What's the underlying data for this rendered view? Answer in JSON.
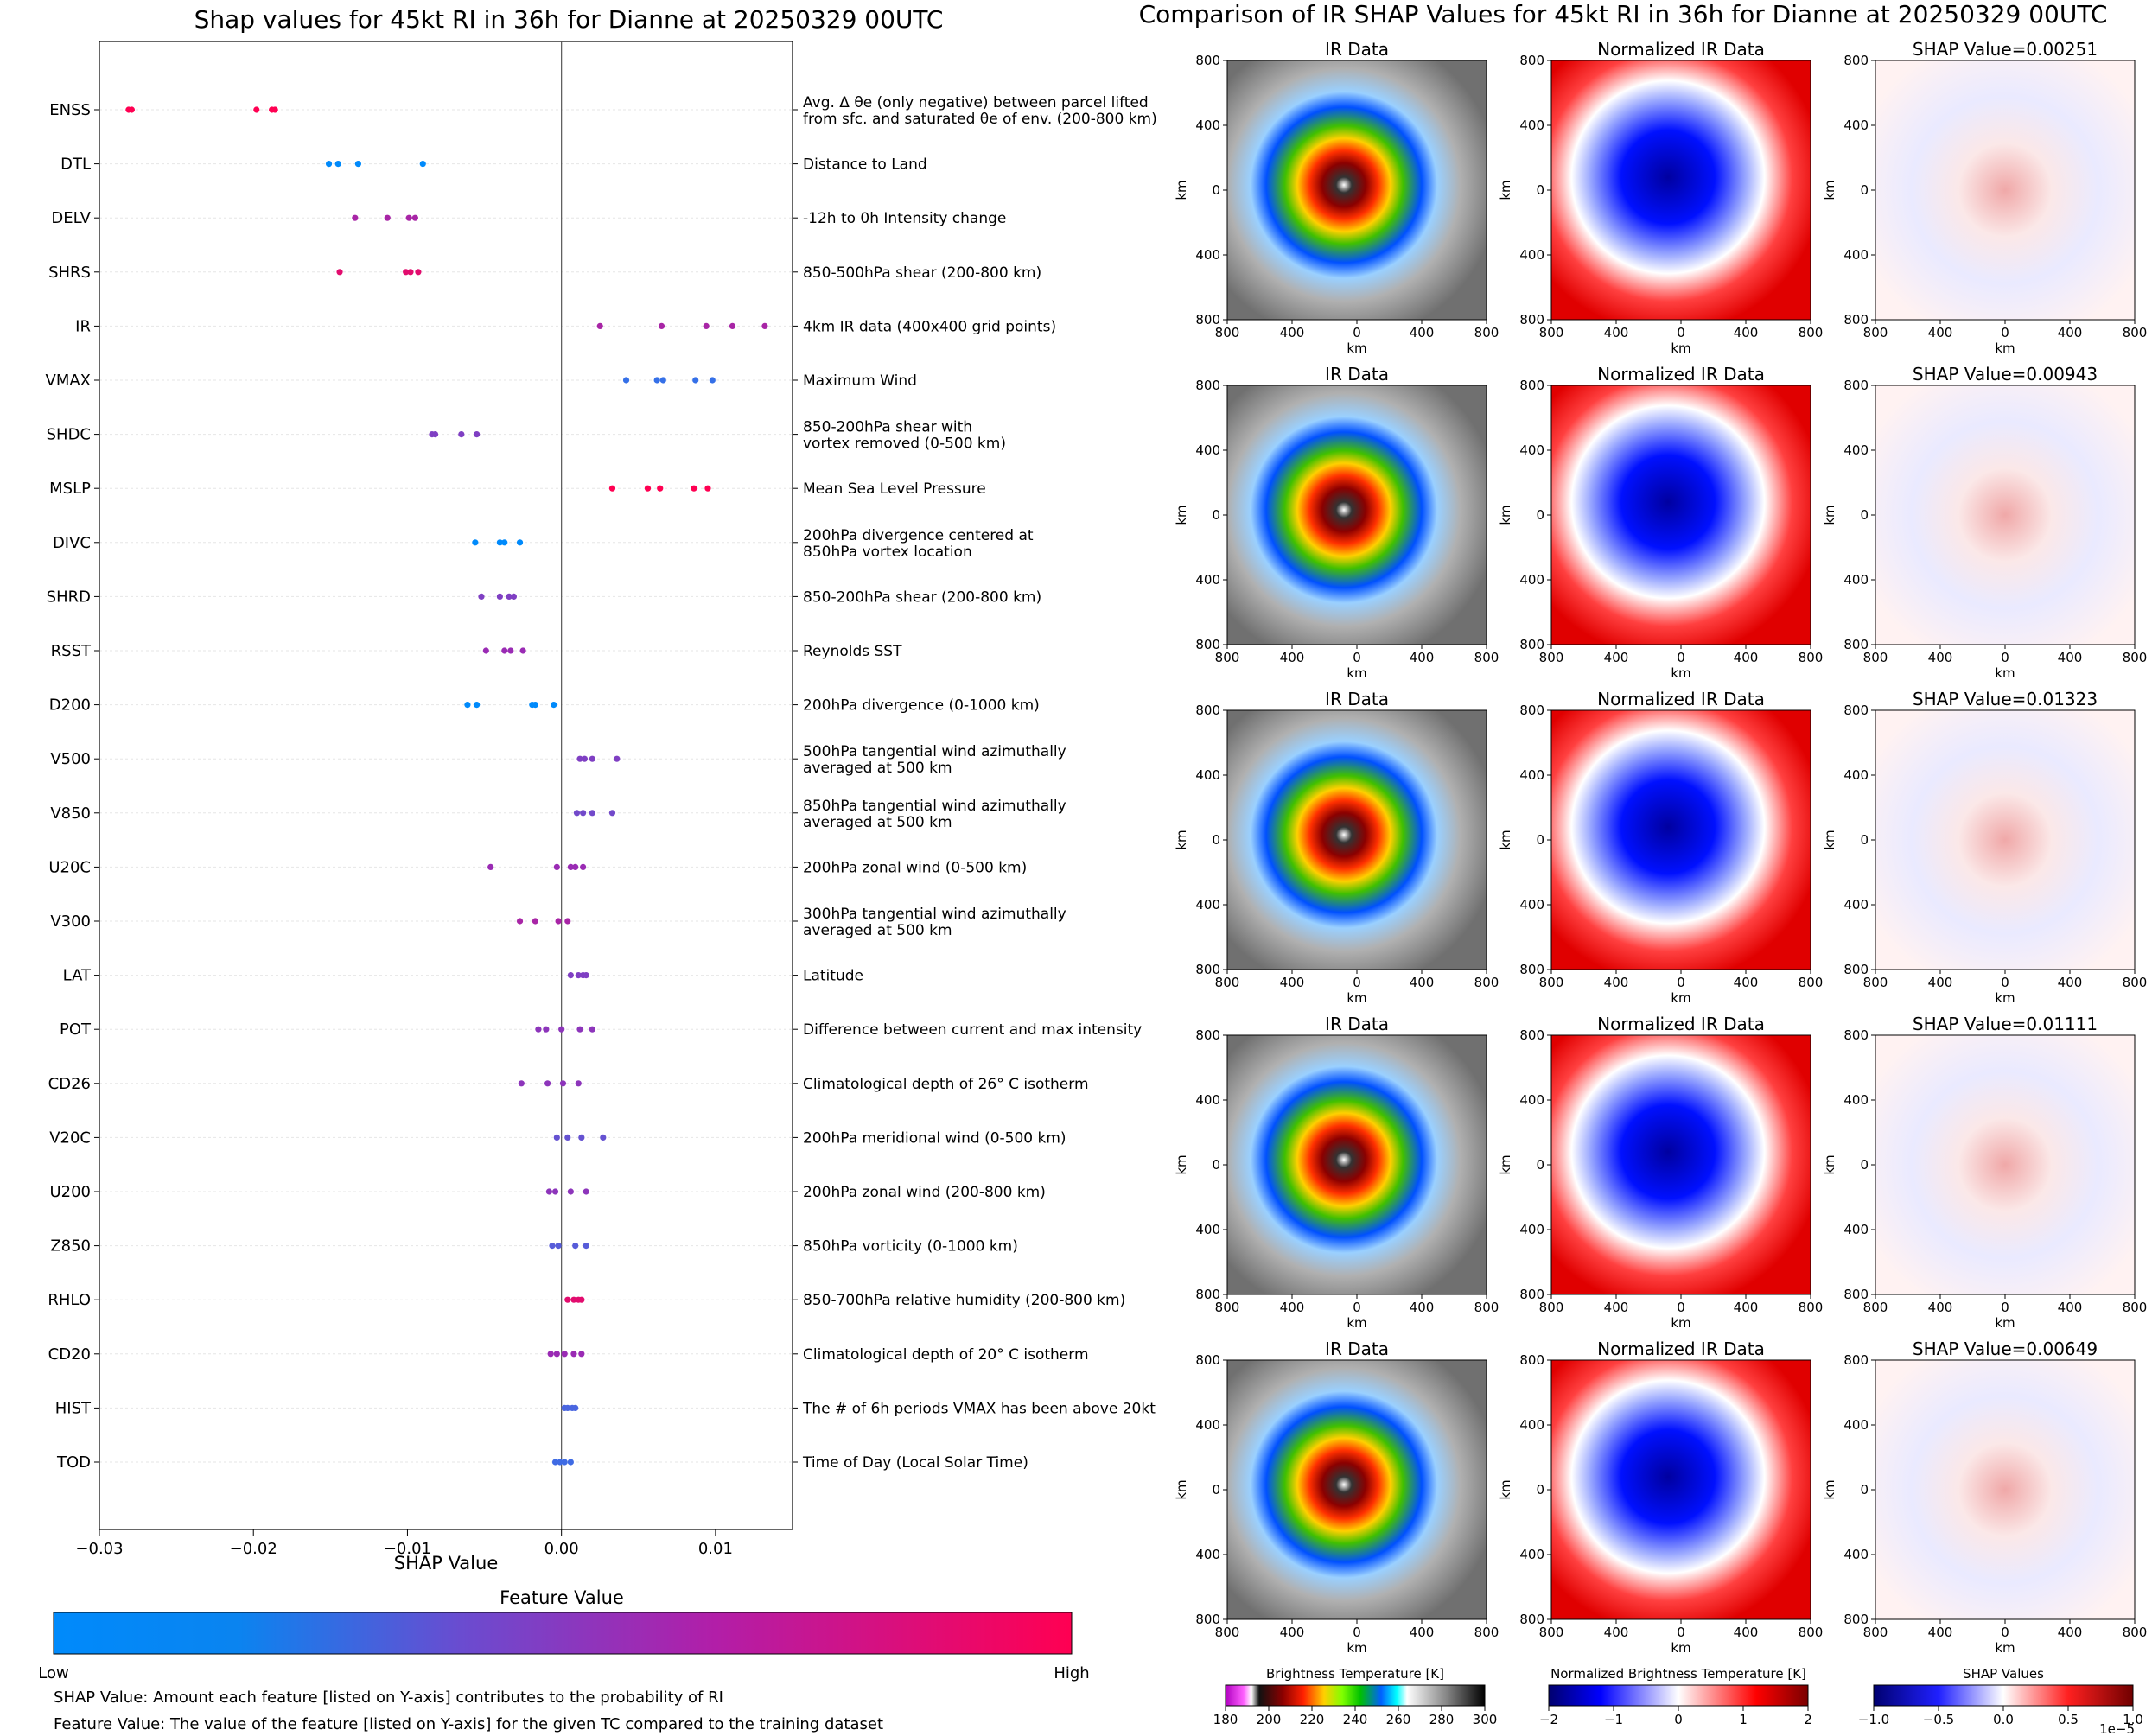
{
  "colors": {
    "low": "#008afb",
    "mid1": "#4a66e0",
    "mid2": "#9a2bb4",
    "high": "#ff0052",
    "grid": "#e6e6e6"
  },
  "chart_data": {
    "type": "scatter",
    "title": "Shap values for 45kt RI in 36h for Dianne at 20250329 00UTC",
    "xlabel": "SHAP Value",
    "xlim": [
      -0.03,
      0.015
    ],
    "xticks": [
      -0.03,
      -0.02,
      -0.01,
      0.0,
      0.01
    ],
    "xtick_labels": [
      "−0.03",
      "−0.02",
      "−0.01",
      "0.00",
      "0.01"
    ],
    "features": [
      {
        "name": "ENSS",
        "desc": [
          "Avg. Δ θe (only negative) between parcel lifted",
          "from sfc. and saturated θe of env. (200-800 km)"
        ],
        "points": [
          -0.0281,
          -0.0279,
          -0.0198,
          -0.0188,
          -0.0186
        ],
        "fv": [
          1,
          1,
          1,
          1,
          1
        ]
      },
      {
        "name": "DTL",
        "desc": [
          "Distance to Land"
        ],
        "points": [
          -0.0151,
          -0.0145,
          -0.0132,
          -0.009
        ],
        "fv": [
          0,
          0,
          0,
          0
        ]
      },
      {
        "name": "DELV",
        "desc": [
          "-12h to 0h Intensity change"
        ],
        "points": [
          -0.0134,
          -0.0113,
          -0.0099,
          -0.0095
        ],
        "fv": [
          0.7,
          0.7,
          0.7,
          0.7
        ]
      },
      {
        "name": "SHRS",
        "desc": [
          "850-500hPa shear (200-800 km)"
        ],
        "points": [
          -0.0144,
          -0.0101,
          -0.0098,
          -0.0093
        ],
        "fv": [
          0.9,
          0.9,
          0.9,
          0.9
        ]
      },
      {
        "name": "IR",
        "desc": [
          "4km IR data (400x400 grid points)"
        ],
        "points": [
          0.0025,
          0.0065,
          0.0094,
          0.0111,
          0.0132
        ],
        "fv": [
          0.7,
          0.7,
          0.7,
          0.7,
          0.7
        ]
      },
      {
        "name": "VMAX",
        "desc": [
          "Maximum Wind"
        ],
        "points": [
          0.0042,
          0.0062,
          0.0066,
          0.0087,
          0.0098
        ],
        "fv": [
          0.25,
          0.25,
          0.25,
          0.25,
          0.25
        ]
      },
      {
        "name": "SHDC",
        "desc": [
          "850-200hPa shear with",
          "vortex removed (0-500 km)"
        ],
        "points": [
          -0.0084,
          -0.0082,
          -0.0065,
          -0.0055
        ],
        "fv": [
          0.55,
          0.55,
          0.55,
          0.55
        ]
      },
      {
        "name": "MSLP",
        "desc": [
          "Mean Sea Level Pressure"
        ],
        "points": [
          0.0033,
          0.0056,
          0.0064,
          0.0086,
          0.0095
        ],
        "fv": [
          1,
          1,
          1,
          1,
          1
        ]
      },
      {
        "name": "DIVC",
        "desc": [
          "200hPa divergence centered at",
          "850hPa vortex location"
        ],
        "points": [
          -0.0056,
          -0.004,
          -0.0037,
          -0.0027
        ],
        "fv": [
          0,
          0,
          0,
          0
        ]
      },
      {
        "name": "SHRD",
        "desc": [
          "850-200hPa shear (200-800 km)"
        ],
        "points": [
          -0.0052,
          -0.004,
          -0.0034,
          -0.0031
        ],
        "fv": [
          0.55,
          0.55,
          0.55,
          0.55
        ]
      },
      {
        "name": "RSST",
        "desc": [
          "Reynolds SST"
        ],
        "points": [
          -0.0049,
          -0.0037,
          -0.0033,
          -0.0025
        ],
        "fv": [
          0.65,
          0.65,
          0.65,
          0.65
        ]
      },
      {
        "name": "D200",
        "desc": [
          "200hPa divergence (0-1000 km)"
        ],
        "points": [
          -0.0061,
          -0.0055,
          -0.0019,
          -0.0017,
          -0.0005
        ],
        "fv": [
          0,
          0,
          0,
          0,
          0
        ]
      },
      {
        "name": "V500",
        "desc": [
          "500hPa tangential wind azimuthally",
          "averaged at 500 km"
        ],
        "points": [
          0.0012,
          0.0015,
          0.002,
          0.0036
        ],
        "fv": [
          0.55,
          0.55,
          0.55,
          0.55
        ]
      },
      {
        "name": "V850",
        "desc": [
          "850hPa tangential wind azimuthally",
          "averaged at 500 km"
        ],
        "points": [
          0.001,
          0.0014,
          0.002,
          0.0033
        ],
        "fv": [
          0.5,
          0.5,
          0.5,
          0.5
        ]
      },
      {
        "name": "U20C",
        "desc": [
          "200hPa zonal wind (0-500 km)"
        ],
        "points": [
          -0.0046,
          -0.0003,
          0.0006,
          0.0009,
          0.0014
        ],
        "fv": [
          0.65,
          0.65,
          0.65,
          0.65,
          0.65
        ]
      },
      {
        "name": "V300",
        "desc": [
          "300hPa tangential wind azimuthally",
          "averaged at 500 km"
        ],
        "points": [
          -0.0027,
          -0.0017,
          -0.0002,
          0.0004
        ],
        "fv": [
          0.7,
          0.7,
          0.7,
          0.7
        ]
      },
      {
        "name": "LAT",
        "desc": [
          "Latitude"
        ],
        "points": [
          0.0006,
          0.0011,
          0.0014,
          0.0016
        ],
        "fv": [
          0.55,
          0.55,
          0.55,
          0.55
        ]
      },
      {
        "name": "POT",
        "desc": [
          "Difference between current and max intensity"
        ],
        "points": [
          -0.0015,
          -0.001,
          0.0,
          0.0012,
          0.002
        ],
        "fv": [
          0.6,
          0.6,
          0.6,
          0.6,
          0.6
        ]
      },
      {
        "name": "CD26",
        "desc": [
          "Climatological depth of 26° C isotherm"
        ],
        "points": [
          -0.0026,
          -0.0009,
          0.0001,
          0.0011
        ],
        "fv": [
          0.6,
          0.6,
          0.6,
          0.6
        ]
      },
      {
        "name": "V20C",
        "desc": [
          "200hPa meridional wind (0-500 km)"
        ],
        "points": [
          -0.0003,
          0.0004,
          0.0013,
          0.0027
        ],
        "fv": [
          0.45,
          0.45,
          0.45,
          0.45
        ]
      },
      {
        "name": "U200",
        "desc": [
          "200hPa zonal wind (200-800 km)"
        ],
        "points": [
          -0.0008,
          -0.0004,
          0.0006,
          0.0016
        ],
        "fv": [
          0.6,
          0.6,
          0.6,
          0.6
        ]
      },
      {
        "name": "Z850",
        "desc": [
          "850hPa vorticity (0-1000 km)"
        ],
        "points": [
          -0.0006,
          -0.0002,
          0.0009,
          0.0016
        ],
        "fv": [
          0.4,
          0.4,
          0.4,
          0.4
        ]
      },
      {
        "name": "RHLO",
        "desc": [
          "850-700hPa relative humidity (200-800 km)"
        ],
        "points": [
          0.0004,
          0.0008,
          0.0011,
          0.0013
        ],
        "fv": [
          0.9,
          0.9,
          0.9,
          0.9
        ]
      },
      {
        "name": "CD20",
        "desc": [
          "Climatological depth of 20° C isotherm"
        ],
        "points": [
          -0.0007,
          -0.0003,
          0.0002,
          0.0008,
          0.0013
        ],
        "fv": [
          0.65,
          0.65,
          0.65,
          0.65,
          0.65
        ]
      },
      {
        "name": "HIST",
        "desc": [
          "The # of 6h periods VMAX has been above 20kt"
        ],
        "points": [
          0.0002,
          0.0004,
          0.0007,
          0.0009
        ],
        "fv": [
          0.35,
          0.35,
          0.35,
          0.35
        ]
      },
      {
        "name": "TOD",
        "desc": [
          "Time of Day (Local Solar Time)"
        ],
        "points": [
          -0.0004,
          -0.0001,
          0.0002,
          0.0006
        ],
        "fv": [
          0.3,
          0.3,
          0.3,
          0.3
        ]
      }
    ],
    "colorbar": {
      "title": "Feature Value",
      "low_label": "Low",
      "high_label": "High"
    },
    "notes": [
      "SHAP Value: Amount each feature [listed on Y-axis] contributes to the probability of RI",
      "Feature Value: The value of the feature [listed on Y-axis] for the given TC compared to the training dataset"
    ],
    "ir_panel": {
      "title": "Comparison of IR SHAP Values for 45kt RI in 36h for Dianne at 20250329 00UTC",
      "col_titles": [
        "IR Data",
        "Normalized IR Data"
      ],
      "shap_titles": [
        "SHAP Value=0.00251",
        "SHAP Value=0.00943",
        "SHAP Value=0.01323",
        "SHAP Value=0.01111",
        "SHAP Value=0.00649"
      ],
      "axis_label": "km",
      "ticks": [
        "800",
        "400",
        "0",
        "400",
        "800"
      ],
      "colorbars": [
        {
          "title": "Brightness Temperature [K]",
          "ticks": [
            "180",
            "200",
            "220",
            "240",
            "260",
            "280",
            "300"
          ]
        },
        {
          "title": "Normalized Brightness Temperature [K]",
          "ticks": [
            "−2",
            "−1",
            "0",
            "1",
            "2"
          ]
        },
        {
          "title": "SHAP Values",
          "ticks": [
            "−1.0",
            "−0.5",
            "0.0",
            "0.5",
            "1.0"
          ],
          "offset": "1e−5"
        }
      ]
    }
  }
}
